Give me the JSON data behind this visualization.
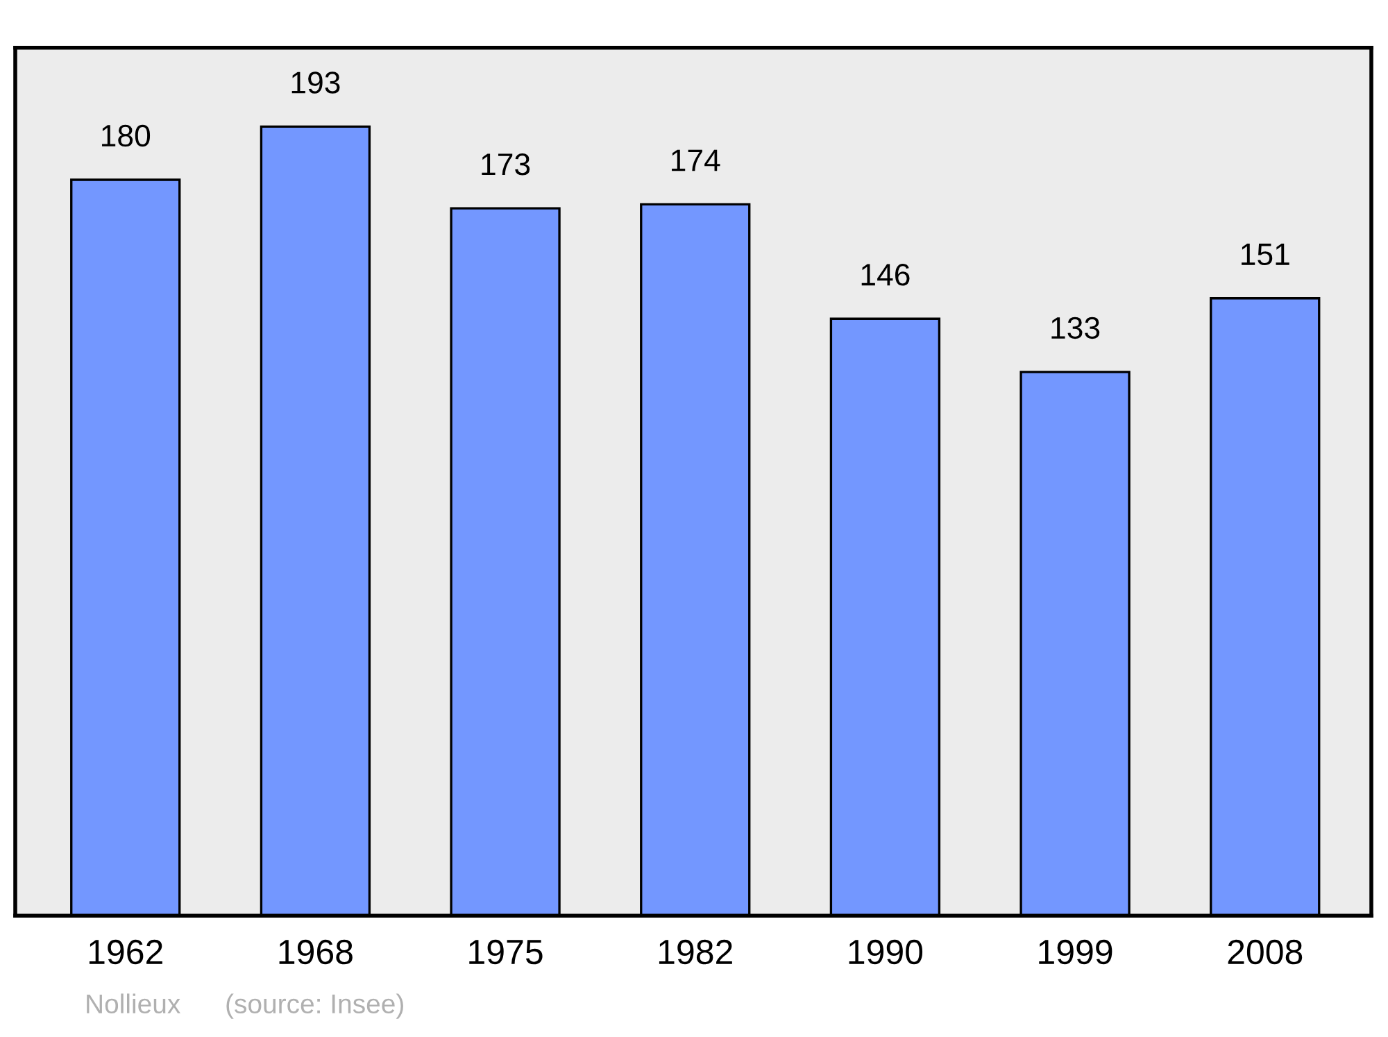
{
  "chart_data": {
    "type": "bar",
    "categories": [
      "1962",
      "1968",
      "1975",
      "1982",
      "1990",
      "1999",
      "2008"
    ],
    "values": [
      180,
      193,
      173,
      174,
      146,
      133,
      151
    ],
    "color": "#7397ff",
    "data_labels": true,
    "grid": false,
    "annotations": [
      "Nollieux",
      "(source: Insee)"
    ]
  }
}
